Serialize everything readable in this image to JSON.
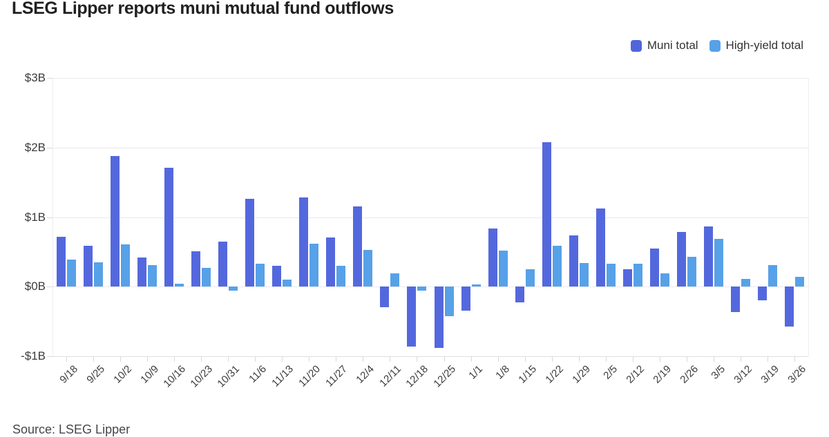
{
  "title": "LSEG Lipper reports muni mutual fund outflows",
  "source": "Source: LSEG Lipper",
  "legend": [
    {
      "label": "Muni total",
      "color": "#5065db"
    },
    {
      "label": "High-yield total",
      "color": "#57a1e8"
    }
  ],
  "chart_data": {
    "type": "bar",
    "title": "LSEG Lipper reports muni mutual fund outflows",
    "xlabel": "",
    "ylabel": "",
    "ylim": [
      -1,
      3
    ],
    "grid": true,
    "legend_position": "top-right",
    "y_ticks": [
      {
        "label": "$3B",
        "value": 3
      },
      {
        "label": "$2B",
        "value": 2
      },
      {
        "label": "$1B",
        "value": 1
      },
      {
        "label": "$0B",
        "value": 0
      },
      {
        "label": "-$1B",
        "value": -1
      }
    ],
    "categories": [
      "9/18",
      "9/25",
      "10/2",
      "10/9",
      "10/16",
      "10/23",
      "10/31",
      "11/6",
      "11/13",
      "11/20",
      "11/27",
      "12/4",
      "12/11",
      "12/18",
      "12/25",
      "1/1",
      "1/8",
      "1/15",
      "1/22",
      "1/29",
      "2/5",
      "2/12",
      "2/19",
      "2/26",
      "3/5",
      "3/12",
      "3/19",
      "3/26"
    ],
    "series": [
      {
        "name": "Muni total",
        "color": "#5468de",
        "values": [
          0.72,
          0.59,
          1.88,
          0.42,
          1.71,
          0.51,
          0.65,
          1.26,
          0.3,
          1.28,
          0.71,
          1.15,
          -0.3,
          -0.86,
          -0.88,
          -0.34,
          0.84,
          -0.23,
          2.08,
          0.74,
          1.12,
          0.25,
          0.55,
          0.79,
          0.87,
          -0.36,
          -0.2,
          -0.57
        ]
      },
      {
        "name": "High-yield total",
        "color": "#57a1e8",
        "values": [
          0.39,
          0.35,
          0.61,
          0.31,
          0.04,
          0.27,
          -0.06,
          0.33,
          0.1,
          0.62,
          0.3,
          0.53,
          0.19,
          -0.06,
          -0.42,
          0.03,
          0.52,
          0.25,
          0.59,
          0.34,
          0.33,
          0.33,
          0.19,
          0.43,
          0.69,
          0.11,
          0.31,
          0.14
        ]
      }
    ]
  }
}
